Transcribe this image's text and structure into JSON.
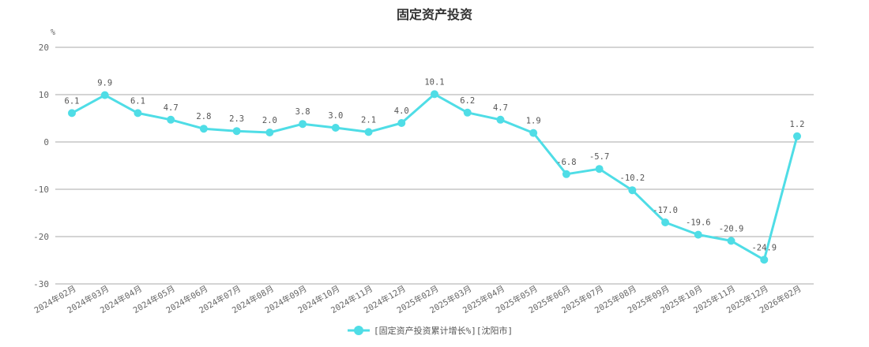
{
  "chart_data": {
    "type": "line",
    "title": "固定资产投资",
    "ylabel": "%",
    "ylim": [
      -30,
      20
    ],
    "yticks": [
      20,
      10,
      0,
      -10,
      -20,
      -30
    ],
    "categories": [
      "2024年02月",
      "2024年03月",
      "2024年04月",
      "2024年05月",
      "2024年06月",
      "2024年07月",
      "2024年08月",
      "2024年09月",
      "2024年10月",
      "2024年11月",
      "2024年12月",
      "2025年02月",
      "2025年03月",
      "2025年04月",
      "2025年05月",
      "2025年06月",
      "2025年07月",
      "2025年08月",
      "2025年09月",
      "2025年10月",
      "2025年11月",
      "2025年12月",
      "2026年02月"
    ],
    "series": [
      {
        "name": "[固定资产投资累计增长%][沈阳市]",
        "color": "#4fdde6",
        "values": [
          6.1,
          9.9,
          6.1,
          4.7,
          2.8,
          2.3,
          2.0,
          3.8,
          3.0,
          2.1,
          4.0,
          10.1,
          6.2,
          4.7,
          1.9,
          -6.8,
          -5.7,
          -10.2,
          -17.0,
          -19.6,
          -20.9,
          -24.9,
          1.2
        ],
        "labels": [
          "6.1",
          "9.9",
          "6.1",
          "4.7",
          "2.8",
          "2.3",
          "2.0",
          "3.8",
          "3.0",
          "2.1",
          "4.0",
          "10.1",
          "6.2",
          "4.7",
          "1.9",
          "-6.8",
          "-5.7",
          "-10.2",
          "-17.0",
          "-19.6",
          "-20.9",
          "-24.9",
          "1.2"
        ]
      }
    ],
    "grid": true,
    "legend_position": "bottom-center"
  }
}
